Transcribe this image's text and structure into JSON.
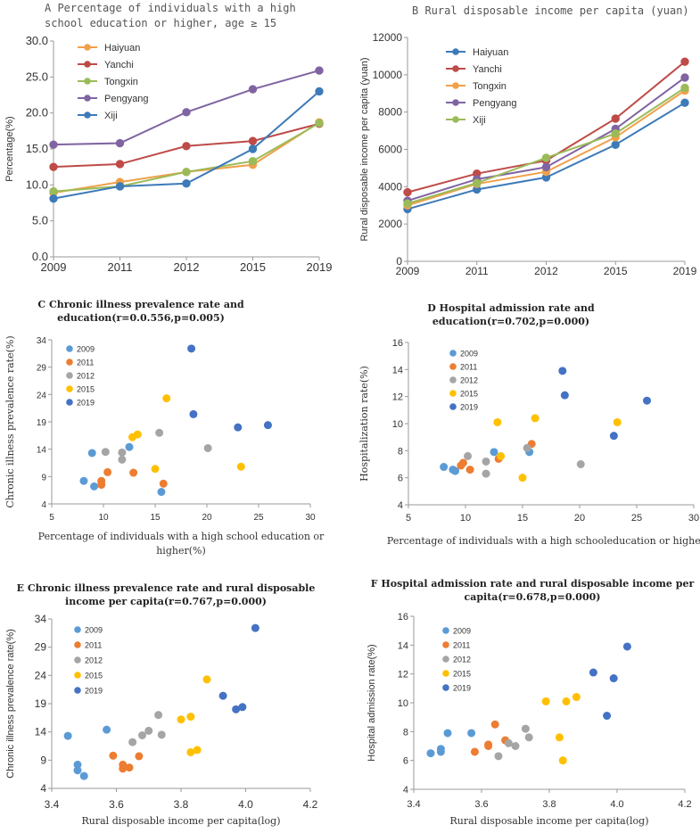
{
  "chart_data": [
    {
      "id": "A",
      "type": "line",
      "title": [
        "A  Percentage of individuals with a high",
        "school education or higher, age ≥ 15"
      ],
      "xlabel": "",
      "ylabel": "Percentage(%)",
      "categories": [
        "2009",
        "2011",
        "2012",
        "2015",
        "2019"
      ],
      "ylim": [
        0,
        30
      ],
      "yticks": [
        0,
        5,
        10,
        15,
        20,
        25,
        30
      ],
      "ytick_labels": [
        "0.0",
        "5.0",
        "10.0",
        "15.0",
        "20.0",
        "25.0",
        "30.0"
      ],
      "grid": false,
      "legend_position": "top-left",
      "series": [
        {
          "name": "Haiyuan",
          "color": "#f0a04a",
          "values": [
            8.9,
            10.4,
            11.8,
            12.8,
            18.7
          ]
        },
        {
          "name": "Yanchi",
          "color": "#be4b48",
          "values": [
            12.5,
            12.9,
            15.4,
            16.1,
            18.5
          ]
        },
        {
          "name": "Tongxin",
          "color": "#9bbb59",
          "values": [
            9.1,
            9.8,
            11.8,
            13.3,
            18.6
          ]
        },
        {
          "name": "Pengyang",
          "color": "#8064a2",
          "values": [
            15.6,
            15.8,
            20.1,
            23.3,
            25.9
          ]
        },
        {
          "name": "Xiji",
          "color": "#3d7ab8",
          "values": [
            8.1,
            9.8,
            10.2,
            15.0,
            23.0
          ]
        }
      ]
    },
    {
      "id": "B",
      "type": "line",
      "title": [
        "B  Rural disposable income per capita (yuan)"
      ],
      "xlabel": "",
      "ylabel": "Rural disposable income per capita (yuan)",
      "categories": [
        "2009",
        "2011",
        "2012",
        "2015",
        "2019"
      ],
      "ylim": [
        0,
        12000
      ],
      "yticks": [
        0,
        2000,
        4000,
        6000,
        8000,
        10000,
        12000
      ],
      "ytick_labels": [
        "0",
        "2000",
        "4000",
        "6000",
        "8000",
        "10000",
        "12000"
      ],
      "grid": false,
      "legend_position": "top-left",
      "series": [
        {
          "name": "Haiyuan",
          "color": "#3d7ab8",
          "values": [
            2800,
            3850,
            4500,
            6250,
            8500
          ]
        },
        {
          "name": "Yanchi",
          "color": "#be4b48",
          "values": [
            3700,
            4700,
            5400,
            7650,
            10700
          ]
        },
        {
          "name": "Tongxin",
          "color": "#f0a04a",
          "values": [
            3000,
            4150,
            4800,
            6650,
            9150
          ]
        },
        {
          "name": "Pengyang",
          "color": "#8064a2",
          "values": [
            3250,
            4400,
            5050,
            7100,
            9850
          ]
        },
        {
          "name": "Xiji",
          "color": "#9bbb59",
          "values": [
            3100,
            4200,
            5550,
            6850,
            9300
          ]
        }
      ]
    },
    {
      "id": "C",
      "type": "scatter",
      "title": [
        "C  Chronic illness prevalence rate and",
        "education(r=0.0.556,p=0.005)"
      ],
      "xlabel": [
        "Percentage of individuals with a high school education or",
        "higher(%)"
      ],
      "ylabel": "Chronic illness prevalence rate(%)",
      "xlim": [
        5,
        30
      ],
      "xticks": [
        5,
        10,
        15,
        20,
        25,
        30
      ],
      "xtick_labels": [
        "5",
        "10",
        "15",
        "20",
        "25",
        "30"
      ],
      "ylim": [
        4,
        34
      ],
      "yticks": [
        4,
        9,
        14,
        19,
        24,
        29,
        34
      ],
      "ytick_labels": [
        "4",
        "9",
        "14",
        "19",
        "24",
        "29",
        "34"
      ],
      "grid": false,
      "legend_position": "top-left",
      "series": [
        {
          "name": "2009",
          "color": "#5b9bd5",
          "points": [
            [
              8.1,
              8.2
            ],
            [
              8.9,
              13.3
            ],
            [
              9.1,
              7.2
            ],
            [
              12.5,
              14.4
            ],
            [
              15.6,
              6.2
            ]
          ]
        },
        {
          "name": "2011",
          "color": "#ed7d31",
          "points": [
            [
              9.8,
              7.5
            ],
            [
              9.8,
              8.2
            ],
            [
              10.4,
              9.8
            ],
            [
              12.9,
              9.7
            ],
            [
              15.8,
              7.7
            ]
          ]
        },
        {
          "name": "2012",
          "color": "#a5a5a5",
          "points": [
            [
              10.2,
              13.5
            ],
            [
              11.8,
              13.4
            ],
            [
              11.8,
              12.1
            ],
            [
              15.4,
              17.0
            ],
            [
              20.1,
              14.2
            ]
          ]
        },
        {
          "name": "2015",
          "color": "#ffc000",
          "points": [
            [
              12.8,
              16.2
            ],
            [
              13.3,
              16.7
            ],
            [
              15.0,
              10.4
            ],
            [
              16.1,
              23.3
            ],
            [
              23.3,
              10.8
            ]
          ]
        },
        {
          "name": "2019",
          "color": "#4472c4",
          "points": [
            [
              18.5,
              32.4
            ],
            [
              18.7,
              20.4
            ],
            [
              23.0,
              18.0
            ],
            [
              25.9,
              18.4
            ]
          ]
        }
      ]
    },
    {
      "id": "D",
      "type": "scatter",
      "title": [
        "D  Hospital admission rate and",
        "education(r=0.702,p=0.000)"
      ],
      "xlabel": [
        "Percentage of individuals with a high schooleducation or higher(%)"
      ],
      "ylabel": "Hospitalization rate(%)",
      "xlim": [
        5,
        30
      ],
      "xticks": [
        5,
        10,
        15,
        20,
        25,
        30
      ],
      "xtick_labels": [
        "5",
        "10",
        "15",
        "20",
        "25",
        "30"
      ],
      "ylim": [
        4,
        16
      ],
      "yticks": [
        4,
        6,
        8,
        10,
        12,
        14,
        16
      ],
      "ytick_labels": [
        "4",
        "6",
        "8",
        "10",
        "12",
        "14",
        "16"
      ],
      "grid": false,
      "legend_position": "top-left",
      "series": [
        {
          "name": "2009",
          "color": "#5b9bd5",
          "points": [
            [
              8.1,
              6.8
            ],
            [
              8.9,
              6.6
            ],
            [
              9.1,
              6.5
            ],
            [
              12.5,
              7.9
            ],
            [
              15.6,
              7.9
            ]
          ]
        },
        {
          "name": "2011",
          "color": "#ed7d31",
          "points": [
            [
              9.6,
              6.9
            ],
            [
              9.8,
              7.1
            ],
            [
              10.4,
              6.6
            ],
            [
              12.9,
              7.4
            ],
            [
              15.8,
              8.5
            ]
          ]
        },
        {
          "name": "2012",
          "color": "#a5a5a5",
          "points": [
            [
              10.2,
              7.6
            ],
            [
              11.8,
              7.2
            ],
            [
              11.8,
              6.3
            ],
            [
              15.4,
              8.2
            ],
            [
              20.1,
              7.0
            ]
          ]
        },
        {
          "name": "2015",
          "color": "#ffc000",
          "points": [
            [
              12.8,
              10.1
            ],
            [
              13.1,
              7.6
            ],
            [
              15.0,
              6.0
            ],
            [
              16.1,
              10.4
            ],
            [
              23.3,
              10.1
            ]
          ]
        },
        {
          "name": "2019",
          "color": "#4472c4",
          "points": [
            [
              18.5,
              13.9
            ],
            [
              18.7,
              12.1
            ],
            [
              23.0,
              9.1
            ],
            [
              25.9,
              11.7
            ]
          ]
        }
      ]
    },
    {
      "id": "E",
      "type": "scatter",
      "title": [
        "E  Chronic illness prevalence rate and rural disposable",
        "income per capita(r=0.767,p=0.000)"
      ],
      "xlabel": [
        "Rural disposable income per capita(log)"
      ],
      "ylabel": "Chronic illness prevalence rate(%)",
      "xlim": [
        3.4,
        4.2
      ],
      "xticks": [
        3.4,
        3.6,
        3.8,
        4.0,
        4.2
      ],
      "xtick_labels": [
        "3.4",
        "3.6",
        "3.8",
        "4.0",
        "4.2"
      ],
      "ylim": [
        4,
        34
      ],
      "yticks": [
        4,
        9,
        14,
        19,
        24,
        29,
        34
      ],
      "ytick_labels": [
        "4",
        "9",
        "14",
        "19",
        "24",
        "29",
        "34"
      ],
      "grid": false,
      "legend_position": "top-left",
      "series": [
        {
          "name": "2009",
          "color": "#5b9bd5",
          "points": [
            [
              3.45,
              13.3
            ],
            [
              3.48,
              8.2
            ],
            [
              3.48,
              7.2
            ],
            [
              3.5,
              6.2
            ],
            [
              3.57,
              14.4
            ]
          ]
        },
        {
          "name": "2011",
          "color": "#ed7d31",
          "points": [
            [
              3.59,
              9.8
            ],
            [
              3.62,
              7.5
            ],
            [
              3.62,
              8.2
            ],
            [
              3.64,
              7.7
            ],
            [
              3.67,
              9.7
            ]
          ]
        },
        {
          "name": "2012",
          "color": "#a5a5a5",
          "points": [
            [
              3.65,
              12.2
            ],
            [
              3.68,
              13.4
            ],
            [
              3.7,
              14.2
            ],
            [
              3.73,
              17.0
            ],
            [
              3.74,
              13.5
            ]
          ]
        },
        {
          "name": "2015",
          "color": "#ffc000",
          "points": [
            [
              3.8,
              16.2
            ],
            [
              3.83,
              16.7
            ],
            [
              3.83,
              10.4
            ],
            [
              3.85,
              10.8
            ],
            [
              3.88,
              23.3
            ]
          ]
        },
        {
          "name": "2019",
          "color": "#4472c4",
          "points": [
            [
              3.93,
              20.4
            ],
            [
              3.97,
              18.0
            ],
            [
              3.99,
              18.4
            ],
            [
              4.03,
              32.4
            ]
          ]
        }
      ]
    },
    {
      "id": "F",
      "type": "scatter",
      "title": [
        "F  Hospital admission rate and rural disposable income per",
        "capita(r=0.678,p=0.000)"
      ],
      "xlabel": [
        "Rural disposable income per capita(log)"
      ],
      "ylabel": "Hospital admission rate(%)",
      "xlim": [
        3.4,
        4.2
      ],
      "xticks": [
        3.4,
        3.6,
        3.8,
        4.0,
        4.2
      ],
      "xtick_labels": [
        "3.4",
        "3.6",
        "3.8",
        "4.0",
        "4.2"
      ],
      "ylim": [
        4,
        16
      ],
      "yticks": [
        4,
        6,
        8,
        10,
        12,
        14,
        16
      ],
      "ytick_labels": [
        "4",
        "6",
        "8",
        "10",
        "12",
        "14",
        "16"
      ],
      "grid": false,
      "legend_position": "top-left",
      "series": [
        {
          "name": "2009",
          "color": "#5b9bd5",
          "points": [
            [
              3.45,
              6.5
            ],
            [
              3.48,
              6.6
            ],
            [
              3.48,
              6.8
            ],
            [
              3.5,
              7.9
            ],
            [
              3.57,
              7.9
            ]
          ]
        },
        {
          "name": "2011",
          "color": "#ed7d31",
          "points": [
            [
              3.58,
              6.6
            ],
            [
              3.62,
              7.0
            ],
            [
              3.62,
              7.1
            ],
            [
              3.64,
              8.5
            ],
            [
              3.67,
              7.4
            ]
          ]
        },
        {
          "name": "2012",
          "color": "#a5a5a5",
          "points": [
            [
              3.65,
              6.3
            ],
            [
              3.68,
              7.2
            ],
            [
              3.7,
              7.0
            ],
            [
              3.73,
              8.2
            ],
            [
              3.74,
              7.6
            ]
          ]
        },
        {
          "name": "2015",
          "color": "#ffc000",
          "points": [
            [
              3.79,
              10.1
            ],
            [
              3.83,
              7.6
            ],
            [
              3.84,
              6.0
            ],
            [
              3.85,
              10.1
            ],
            [
              3.88,
              10.4
            ]
          ]
        },
        {
          "name": "2019",
          "color": "#4472c4",
          "points": [
            [
              3.93,
              12.1
            ],
            [
              3.97,
              9.1
            ],
            [
              3.99,
              11.7
            ],
            [
              4.03,
              13.9
            ]
          ]
        }
      ]
    }
  ]
}
